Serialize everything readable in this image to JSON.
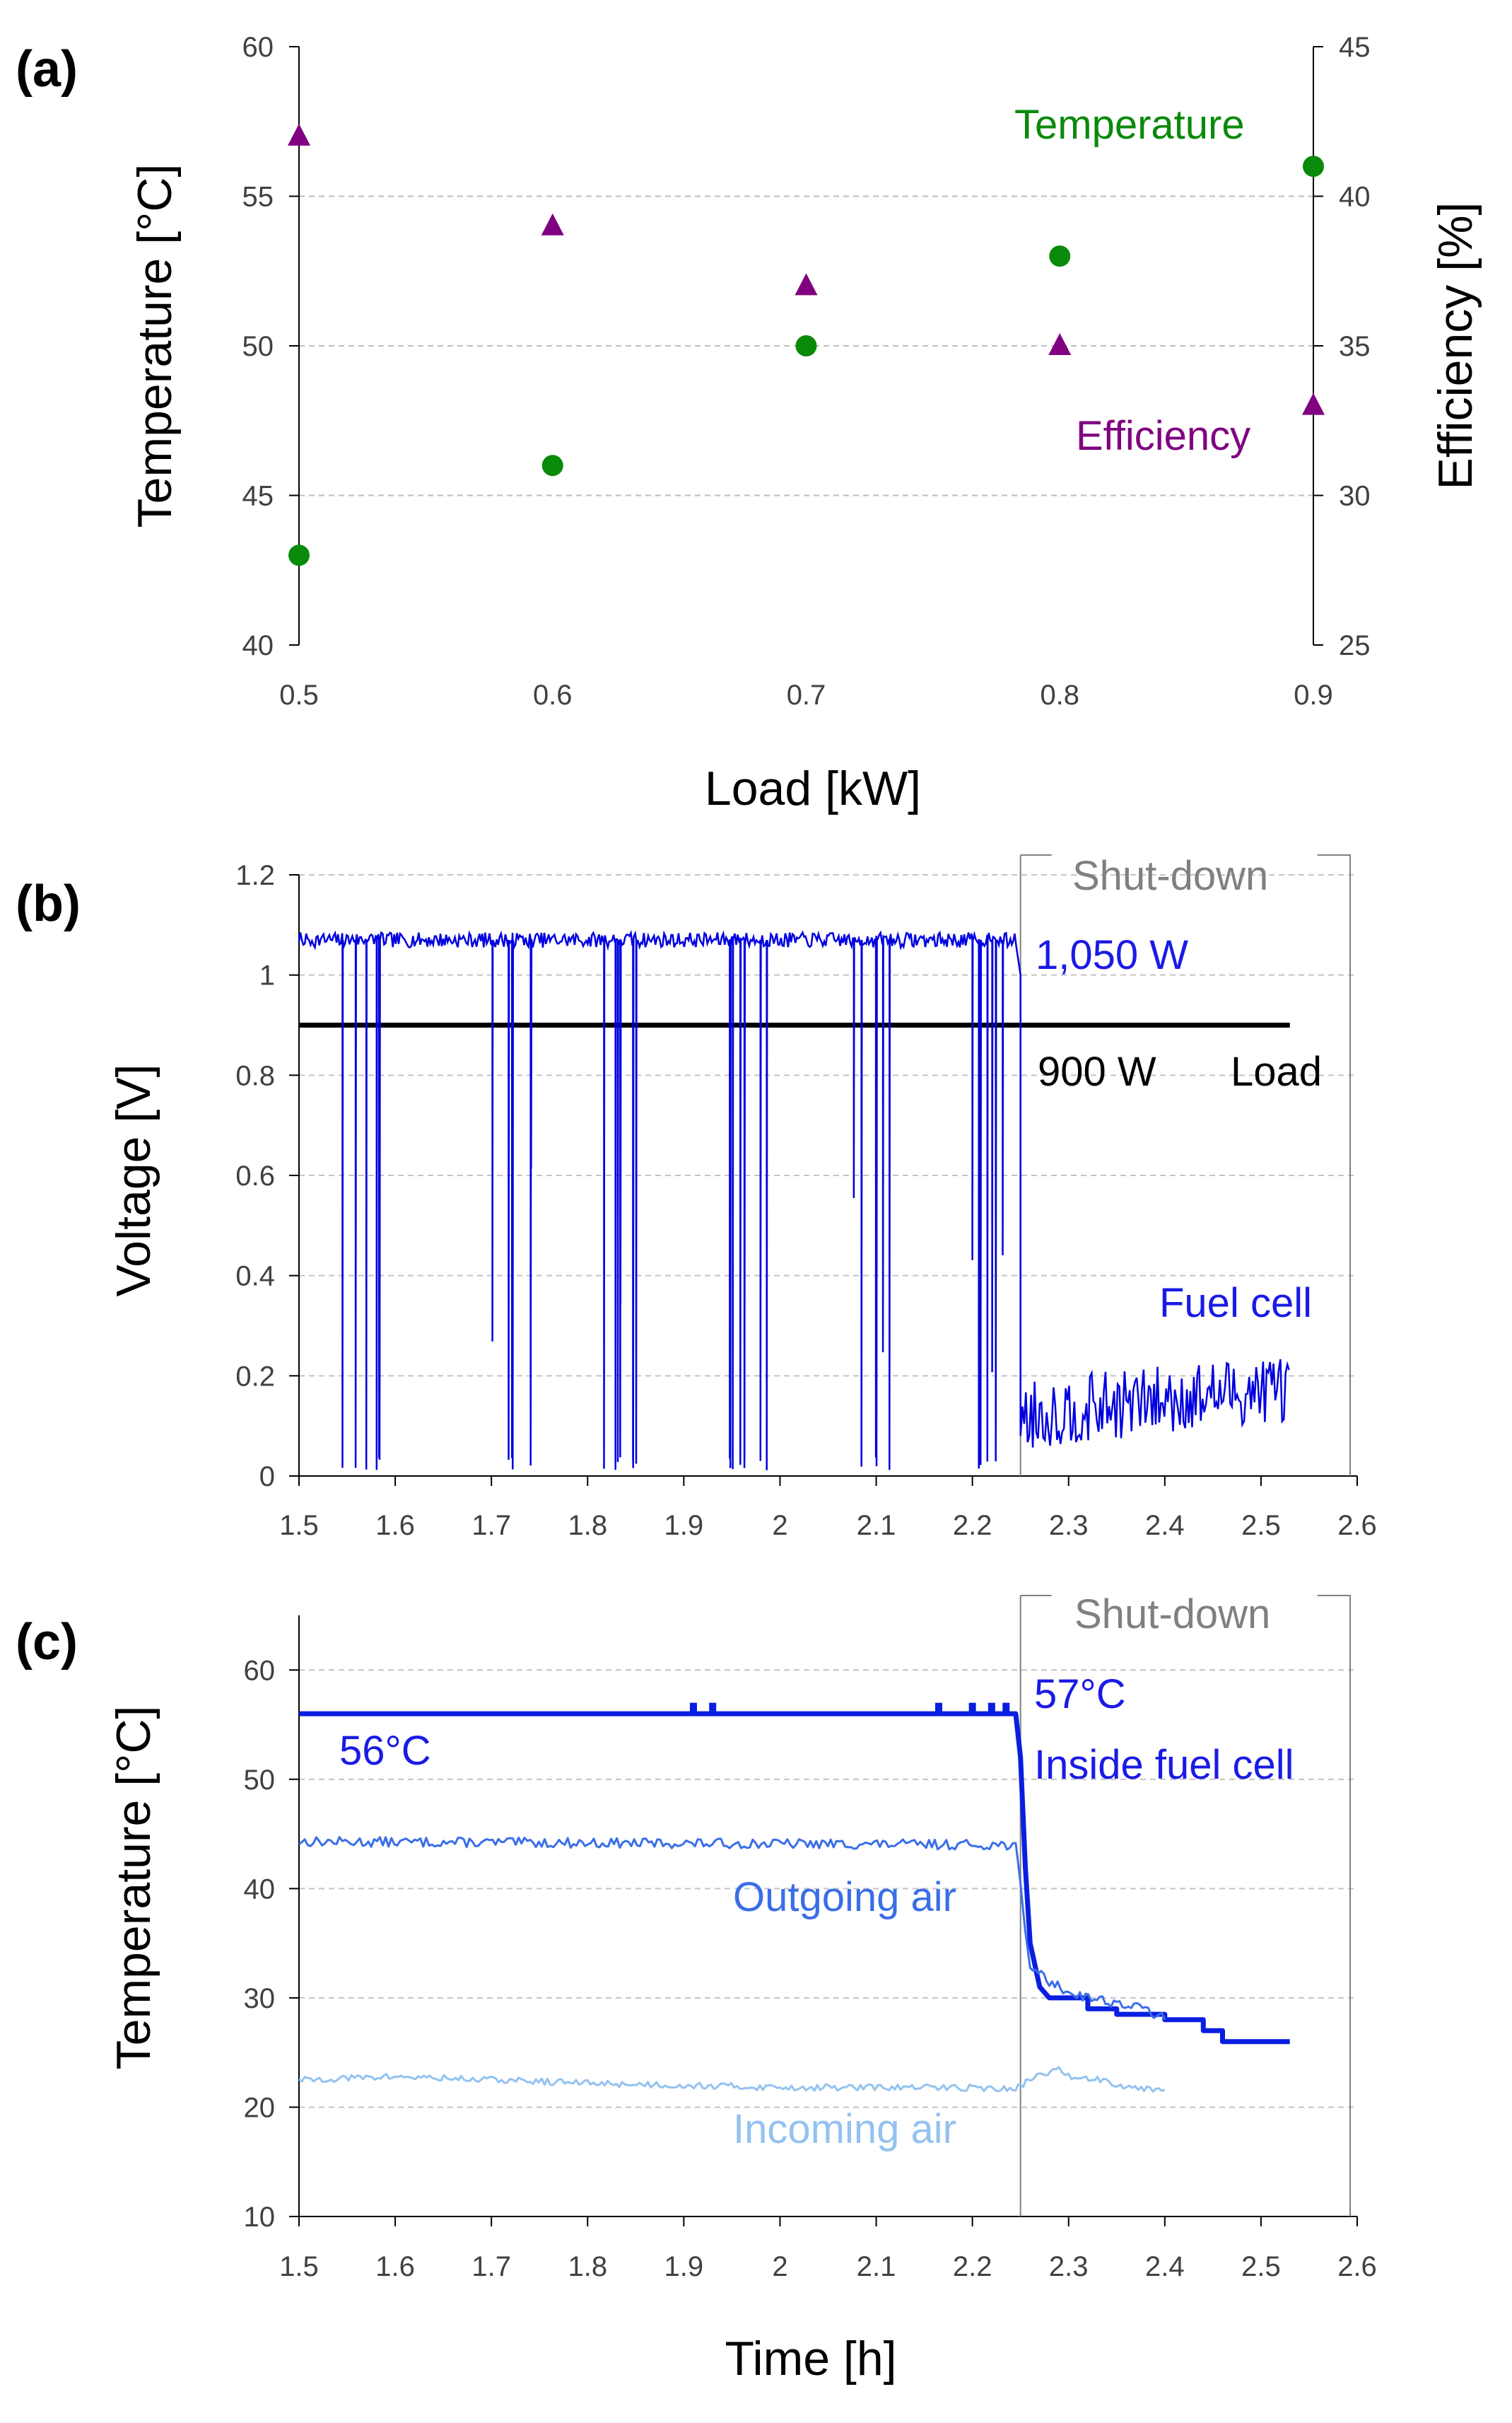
{
  "chart_data": [
    {
      "type": "scatter",
      "panel_label": "(a)",
      "xlabel": "Load [kW]",
      "ylabel": "Temperature [°C]",
      "y2label": "Efficiency [%]",
      "xlim": [
        0.5,
        0.9
      ],
      "ylim": [
        40,
        60
      ],
      "y2lim": [
        25,
        45
      ],
      "xticks": [
        "0.5",
        "0.6",
        "0.7",
        "0.8",
        "0.9"
      ],
      "yticks": [
        "40",
        "45",
        "50",
        "55",
        "60"
      ],
      "y2ticks": [
        "25",
        "30",
        "35",
        "40",
        "45"
      ],
      "grid": true,
      "series": [
        {
          "name": "Temperature",
          "axis": "left",
          "marker": "circle",
          "color": "#0a8a0a",
          "x": [
            0.5,
            0.6,
            0.7,
            0.8,
            0.9
          ],
          "y": [
            43,
            46,
            50,
            53,
            56
          ]
        },
        {
          "name": "Efficiency",
          "axis": "right",
          "marker": "triangle",
          "color": "#800080",
          "x": [
            0.5,
            0.6,
            0.7,
            0.8,
            0.9
          ],
          "y": [
            42,
            39,
            37,
            35,
            33
          ]
        }
      ]
    },
    {
      "type": "line",
      "panel_label": "(b)",
      "xlabel": "",
      "ylabel": "Voltage [V]",
      "xlim": [
        1.5,
        2.6
      ],
      "ylim": [
        0,
        1.2
      ],
      "xticks": [
        "1.5",
        "1.6",
        "1.7",
        "1.8",
        "1.9",
        "2",
        "2.1",
        "2.2",
        "2.3",
        "2.4",
        "2.5",
        "2.6"
      ],
      "yticks": [
        "0",
        "0.2",
        "0.4",
        "0.6",
        "0.8",
        "1",
        "1.2"
      ],
      "grid": true,
      "shutdown_x": 2.25,
      "annotations": {
        "shutdown": "Shut-down",
        "fc_power": "1,050 W",
        "load_power": "900 W",
        "load": "Load",
        "fuel_cell": "Fuel cell"
      },
      "series": [
        {
          "name": "Fuel cell",
          "color": "#0000e0",
          "level_before": 1.07,
          "level_after_start": 0.12,
          "level_after_end": 0.18,
          "end_x": 2.53,
          "dip_centers": [
            1.565,
            1.72,
            1.835,
            1.965,
            2.095,
            2.215
          ]
        },
        {
          "name": "Load",
          "color": "#000000",
          "x": [
            1.5,
            2.53
          ],
          "y": [
            0.9,
            0.9
          ]
        }
      ]
    },
    {
      "type": "line",
      "panel_label": "(c)",
      "xlabel": "Time [h]",
      "ylabel": "Temperature [°C]",
      "xlim": [
        1.5,
        2.6
      ],
      "ylim": [
        10,
        65
      ],
      "xticks": [
        "1.5",
        "1.6",
        "1.7",
        "1.8",
        "1.9",
        "2",
        "2.1",
        "2.2",
        "2.3",
        "2.4",
        "2.5",
        "2.6"
      ],
      "yticks": [
        "10",
        "20",
        "30",
        "40",
        "50",
        "60"
      ],
      "grid": true,
      "shutdown_x": 2.25,
      "annotations": {
        "shutdown": "Shut-down",
        "t_before": "56°C",
        "t_peak": "57°C",
        "inside": "Inside fuel cell",
        "outgoing": "Outgoing air",
        "incoming": "Incoming air"
      },
      "series": [
        {
          "name": "Inside fuel cell",
          "color": "#0a1ee0",
          "x": [
            1.5,
            2.245,
            2.25,
            2.255,
            2.26,
            2.27,
            2.28,
            2.3,
            2.32,
            2.35,
            2.4,
            2.44,
            2.46,
            2.53
          ],
          "y": [
            56,
            56,
            52,
            42,
            35,
            31,
            30,
            30,
            29,
            28.5,
            28,
            27,
            26,
            26
          ]
        },
        {
          "name": "Outgoing air",
          "color": "#3a6ee8",
          "x": [
            1.5,
            2.245,
            2.25,
            2.255,
            2.26,
            2.28,
            2.3,
            2.35,
            2.38,
            2.4
          ],
          "y": [
            44.3,
            44,
            40,
            36,
            33,
            31.5,
            30.5,
            29.5,
            29,
            28
          ]
        },
        {
          "name": "Incoming air",
          "color": "#93c2f0",
          "x": [
            1.5,
            1.6,
            1.8,
            2.0,
            2.2,
            2.245,
            2.25,
            2.27,
            2.29,
            2.3,
            2.33,
            2.36,
            2.4
          ],
          "y": [
            22.5,
            22.8,
            22.2,
            21.8,
            21.8,
            21.6,
            22,
            23,
            23.4,
            22.8,
            22.6,
            21.9,
            21.6
          ]
        }
      ]
    }
  ]
}
